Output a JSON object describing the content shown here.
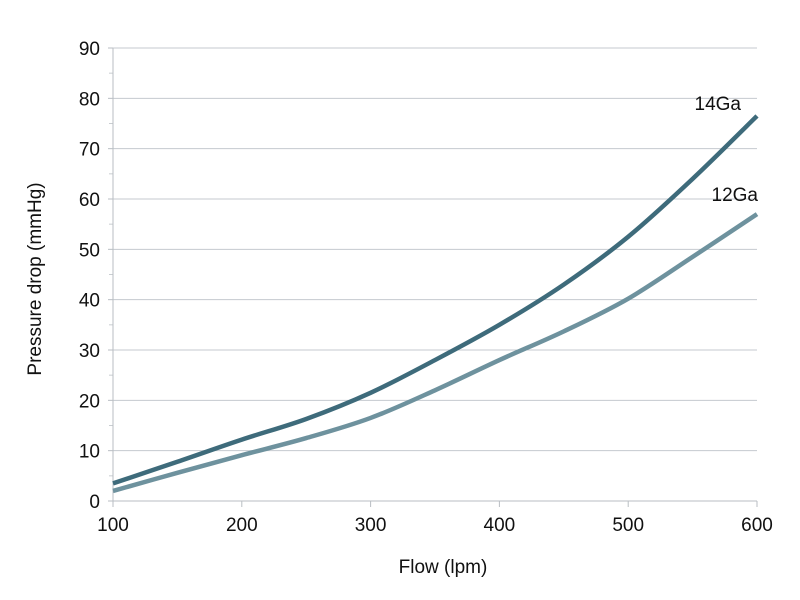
{
  "chart_data": {
    "type": "line",
    "title": "",
    "xlabel": "Flow (lpm)",
    "ylabel": "Pressure drop (mmHg)",
    "xlim": [
      100,
      600
    ],
    "ylim": [
      0,
      90
    ],
    "xticks": [
      100,
      200,
      300,
      400,
      500,
      600
    ],
    "yticks": [
      0,
      10,
      20,
      30,
      40,
      50,
      60,
      70,
      80,
      90
    ],
    "grid": "horizontal",
    "legend": "none (inline labels at line ends)",
    "x": [
      100,
      150,
      200,
      250,
      300,
      350,
      400,
      450,
      500,
      550,
      600
    ],
    "series": [
      {
        "name": "14Ga",
        "color": "#3e6b7b",
        "values": [
          3.5,
          7.8,
          12.2,
          16.3,
          21.5,
          28,
          35,
          43,
          52.5,
          64,
          76.5
        ]
      },
      {
        "name": "12Ga",
        "color": "#6e929e",
        "values": [
          2,
          5.6,
          9.1,
          12.5,
          16.5,
          22,
          28,
          33.7,
          40.2,
          48.5,
          57
        ]
      }
    ]
  }
}
